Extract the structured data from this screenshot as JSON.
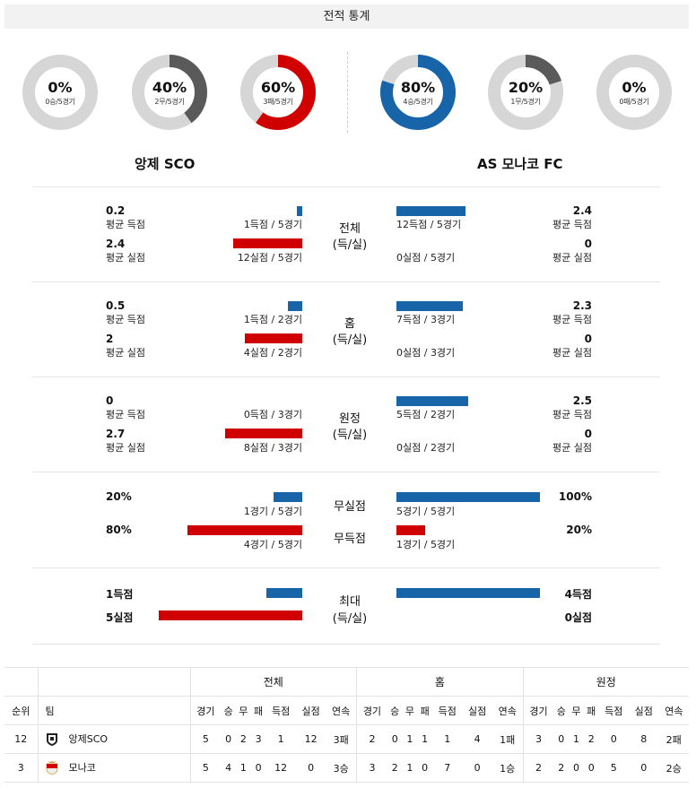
{
  "header": {
    "title": "전적 통계"
  },
  "donuts": [
    {
      "pct": "0%",
      "sub": "0승/5경기",
      "value": 0,
      "color": "#5a5a5a"
    },
    {
      "pct": "40%",
      "sub": "2무/5경기",
      "value": 0.4,
      "color": "#5a5a5a"
    },
    {
      "pct": "60%",
      "sub": "3패/5경기",
      "value": 0.6,
      "color": "#d10000"
    },
    {
      "pct": "80%",
      "sub": "4승/5경기",
      "value": 0.8,
      "color": "#1764a8"
    },
    {
      "pct": "20%",
      "sub": "1무/5경기",
      "value": 0.2,
      "color": "#5a5a5a"
    },
    {
      "pct": "0%",
      "sub": "0패/5경기",
      "value": 0,
      "color": "#5a5a5a"
    }
  ],
  "teams": {
    "home": "앙제 SCO",
    "away": "AS 모나코 FC"
  },
  "sections": [
    {
      "label1": "전체",
      "label2": "(득/실)",
      "home": {
        "gf": "0.2",
        "gf_label": "평균 득점",
        "gf_detail": "1득점 / 5경기",
        "gf_ratio": 0.04,
        "ga": "2.4",
        "ga_label": "평균 실점",
        "ga_detail": "12실점 / 5경기",
        "ga_ratio": 0.48
      },
      "away": {
        "gf": "2.4",
        "gf_label": "평균 득점",
        "gf_detail": "12득점 / 5경기",
        "gf_ratio": 0.48,
        "ga": "0",
        "ga_label": "평균 실점",
        "ga_detail": "0실점 / 5경기",
        "ga_ratio": 0
      }
    },
    {
      "label1": "홈",
      "label2": "(득/실)",
      "home": {
        "gf": "0.5",
        "gf_label": "평균 득점",
        "gf_detail": "1득점 / 2경기",
        "gf_ratio": 0.1,
        "ga": "2",
        "ga_label": "평균 실점",
        "ga_detail": "4실점 / 2경기",
        "ga_ratio": 0.4
      },
      "away": {
        "gf": "2.3",
        "gf_label": "평균 득점",
        "gf_detail": "7득점 / 3경기",
        "gf_ratio": 0.46,
        "ga": "0",
        "ga_label": "평균 실점",
        "ga_detail": "0실점 / 3경기",
        "ga_ratio": 0
      }
    },
    {
      "label1": "원정",
      "label2": "(득/실)",
      "home": {
        "gf": "0",
        "gf_label": "평균 득점",
        "gf_detail": "0득점 / 3경기",
        "gf_ratio": 0,
        "ga": "2.7",
        "ga_label": "평균 실점",
        "ga_detail": "8실점 / 3경기",
        "ga_ratio": 0.54
      },
      "away": {
        "gf": "2.5",
        "gf_label": "평균 득점",
        "gf_detail": "5득점 / 2경기",
        "gf_ratio": 0.5,
        "ga": "0",
        "ga_label": "평균 실점",
        "ga_detail": "0실점 / 2경기",
        "ga_ratio": 0
      }
    }
  ],
  "cleansheet": {
    "label1": "무실점",
    "label2": "무득점",
    "home": {
      "cs": "20%",
      "cs_detail": "1경기 / 5경기",
      "cs_ratio": 0.2,
      "fts": "80%",
      "fts_detail": "4경기 / 5경기",
      "fts_ratio": 0.8
    },
    "away": {
      "cs": "100%",
      "cs_detail": "5경기 / 5경기",
      "cs_ratio": 1,
      "fts": "20%",
      "fts_detail": "1경기 / 5경기",
      "fts_ratio": 0.2
    }
  },
  "maximum": {
    "label1": "최대",
    "label2": "(득/실)",
    "home": {
      "gf": "1득점",
      "gf_ratio": 0.25,
      "ga": "5실점",
      "ga_ratio": 1
    },
    "away": {
      "gf": "4득점",
      "gf_ratio": 1,
      "ga": "0실점",
      "ga_ratio": 0
    }
  },
  "standings": {
    "groups": [
      "전체",
      "홈",
      "원정"
    ],
    "col_rank": "순위",
    "col_team": "팀",
    "sub_cols": [
      "경기",
      "승",
      "무",
      "패",
      "득점",
      "실점",
      "연속"
    ],
    "rows": [
      {
        "rank": "12",
        "team": "앙제SCO",
        "logo": "angers-logo-icon",
        "total": [
          "5",
          "0",
          "2",
          "3",
          "1",
          "12",
          "3패"
        ],
        "home": [
          "2",
          "0",
          "1",
          "1",
          "1",
          "4",
          "1패"
        ],
        "away": [
          "3",
          "0",
          "1",
          "2",
          "0",
          "8",
          "2패"
        ]
      },
      {
        "rank": "3",
        "team": "모나코",
        "logo": "monaco-logo-icon",
        "total": [
          "5",
          "4",
          "1",
          "0",
          "12",
          "0",
          "3승"
        ],
        "home": [
          "3",
          "2",
          "1",
          "0",
          "7",
          "0",
          "1승"
        ],
        "away": [
          "2",
          "2",
          "0",
          "0",
          "5",
          "0",
          "2승"
        ]
      }
    ]
  }
}
